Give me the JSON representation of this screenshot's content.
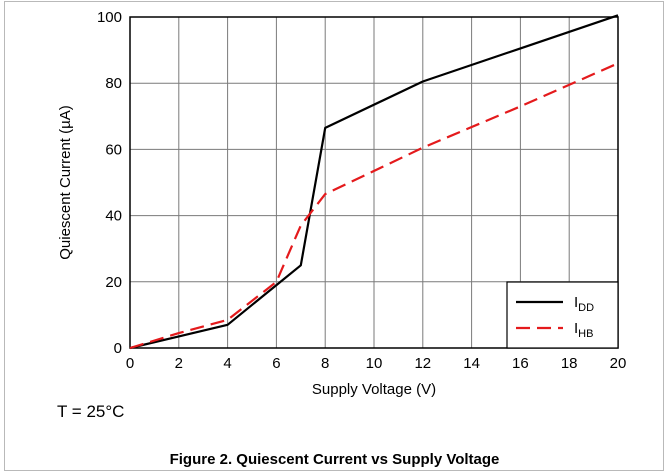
{
  "note": "T = 25°C",
  "caption": "Figure 2. Quiescent Current vs Supply Voltage",
  "chart_data": {
    "type": "line",
    "title": "",
    "xlabel": "Supply Voltage (V)",
    "ylabel": "Quiescent Current (µA)",
    "xlim": [
      0,
      20
    ],
    "ylim": [
      0,
      100
    ],
    "xticks": [
      0,
      2,
      4,
      6,
      8,
      10,
      12,
      14,
      16,
      18,
      20
    ],
    "yticks": [
      0,
      20,
      40,
      60,
      80,
      100
    ],
    "grid": true,
    "legend_position": "bottom-right",
    "series": [
      {
        "name": "IDD",
        "name_main": "I",
        "name_sub": "DD",
        "color": "#000000",
        "style": "solid",
        "x": [
          0,
          2,
          4,
          6,
          7,
          8,
          12,
          16,
          20
        ],
        "y": [
          0,
          3.5,
          7,
          19,
          25,
          66.5,
          80.5,
          90.5,
          100.5
        ]
      },
      {
        "name": "IHB",
        "name_main": "I",
        "name_sub": "HB",
        "color": "#e41a1c",
        "style": "dashed",
        "x": [
          0,
          2,
          4,
          6,
          7,
          8,
          12,
          16,
          20
        ],
        "y": [
          0,
          4.5,
          8.5,
          20,
          37,
          46.5,
          60.5,
          73,
          86
        ]
      }
    ]
  }
}
